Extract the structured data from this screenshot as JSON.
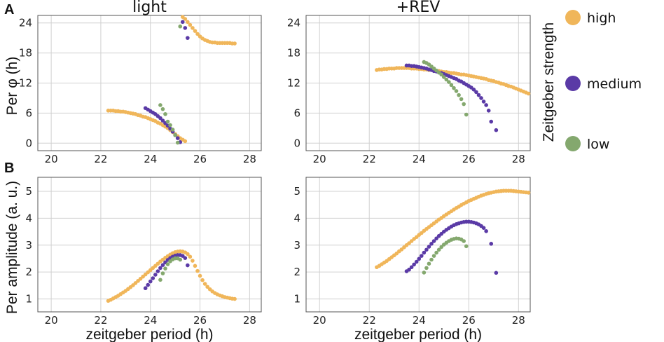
{
  "panel_labels": {
    "a": "A",
    "b": "B"
  },
  "chart_data": [
    {
      "type": "scatter",
      "id": "phase-light",
      "title": "light",
      "xlabel": "",
      "ylabel": "Per φ (h)",
      "xlim": [
        19.46,
        28.47
      ],
      "ylim": [
        -1.5,
        25.5
      ],
      "xticks": [
        20,
        22,
        24,
        26,
        28
      ],
      "yticks": [
        0,
        6,
        12,
        18,
        24
      ],
      "grid": true,
      "series": [
        {
          "name": "high",
          "x0": 22.3,
          "dx": 0.1,
          "y": [
            6.5,
            6.5,
            6.5,
            6.4,
            6.4,
            6.3,
            6.3,
            6.2,
            6.1,
            6.0,
            5.9,
            5.8,
            5.6,
            5.5,
            5.3,
            5.2,
            5.0,
            4.8,
            4.6,
            4.4,
            4.1,
            3.9,
            3.6,
            3.3,
            3.0,
            2.6,
            2.2,
            1.8,
            1.4,
            1.0,
            0.7,
            0.4
          ]
        },
        {
          "name": "high",
          "x0": 25.3,
          "dx": 0.1,
          "y": [
            25.2,
            24.8,
            24.2,
            23.6,
            23.0,
            22.4,
            21.8,
            21.3,
            20.9,
            20.6,
            20.4,
            20.2,
            20.1,
            20.1,
            20.0,
            20.0,
            20.0,
            20.0,
            20.0,
            20.0,
            19.9,
            19.9
          ]
        },
        {
          "name": "medium",
          "x0": 23.8,
          "dx": 0.1,
          "y": [
            7.0,
            6.7,
            6.4,
            6.1,
            5.8,
            5.4,
            5.0,
            4.5,
            4.0,
            3.5,
            2.9,
            2.3,
            1.6,
            1.0,
            0.2
          ]
        },
        {
          "name": "medium",
          "x0": 25.3,
          "dx": 0.1,
          "y": [
            24.2,
            23.0,
            21.0
          ]
        },
        {
          "name": "low",
          "x0": 24.4,
          "dx": 0.1,
          "y": [
            7.6,
            6.8,
            5.8,
            4.3,
            3.6,
            2.7,
            1.6,
            0.1
          ]
        },
        {
          "name": "low",
          "x0": 25.2,
          "dx": 0.1,
          "y": [
            23.3
          ]
        }
      ]
    },
    {
      "type": "scatter",
      "id": "phase-rev",
      "title": "+REV",
      "xlabel": "",
      "ylabel": "",
      "xlim": [
        19.46,
        28.47
      ],
      "ylim": [
        -1.5,
        25.5
      ],
      "xticks": [
        20,
        22,
        24,
        26,
        28
      ],
      "yticks": [
        0,
        6,
        12,
        18,
        24
      ],
      "grid": true,
      "series": [
        {
          "name": "high",
          "x0": 22.3,
          "dx": 0.1,
          "y": [
            14.6,
            14.7,
            14.7,
            14.8,
            14.8,
            14.9,
            14.9,
            14.9,
            15.0,
            15.0,
            15.0,
            15.0,
            15.0,
            15.0,
            14.9,
            14.9,
            14.9,
            14.8,
            14.8,
            14.7,
            14.7,
            14.6,
            14.6,
            14.5,
            14.4,
            14.4,
            14.3,
            14.2,
            14.2,
            14.1,
            14.0,
            14.0,
            13.9,
            13.8,
            13.7,
            13.7,
            13.6,
            13.5,
            13.4,
            13.3,
            13.2,
            13.1,
            13.0,
            12.9,
            12.8,
            12.6,
            12.5,
            12.4,
            12.2,
            12.1,
            11.9,
            11.8,
            11.6,
            11.4,
            11.3,
            11.1,
            10.9,
            10.7,
            10.5,
            10.3,
            10.1,
            9.9
          ]
        },
        {
          "name": "medium",
          "x0": 23.5,
          "dx": 0.1,
          "y": [
            15.5,
            15.5,
            15.4,
            15.4,
            15.3,
            15.2,
            15.1,
            15.0,
            14.9,
            14.7,
            14.6,
            14.4,
            14.3,
            14.1,
            14.0,
            13.8,
            13.6,
            13.4,
            13.2,
            13.0,
            12.8,
            12.5,
            12.3,
            12.0,
            11.7,
            11.4,
            11.1,
            10.7,
            10.2,
            9.6,
            9.0,
            8.3,
            7.6,
            6.5,
            4.3
          ]
        },
        {
          "name": "medium",
          "x0": 27.1,
          "dx": 0.1,
          "y": [
            2.6
          ]
        },
        {
          "name": "low",
          "x0": 24.2,
          "dx": 0.1,
          "y": [
            16.2,
            16.0,
            15.7,
            15.3,
            14.9,
            14.5,
            14.1,
            13.7,
            13.2,
            12.7,
            12.2,
            11.6,
            11.0,
            10.4,
            9.6,
            8.8,
            7.8,
            5.7
          ]
        }
      ]
    },
    {
      "type": "scatter",
      "id": "amp-light",
      "title": "",
      "xlabel": "zeitgeber period (h)",
      "ylabel": "Per amplitude (a. u.)",
      "xlim": [
        19.46,
        28.47
      ],
      "ylim": [
        0.52,
        5.52
      ],
      "xticks": [
        20,
        22,
        24,
        26,
        28
      ],
      "yticks": [
        1,
        2,
        3,
        4,
        5
      ],
      "grid": true,
      "series": [
        {
          "name": "high",
          "x0": 22.3,
          "dx": 0.1,
          "y": [
            0.93,
            0.97,
            1.02,
            1.07,
            1.12,
            1.18,
            1.24,
            1.3,
            1.37,
            1.44,
            1.51,
            1.59,
            1.67,
            1.75,
            1.83,
            1.91,
            1.99,
            2.07,
            2.15,
            2.23,
            2.31,
            2.39,
            2.46,
            2.53,
            2.59,
            2.65,
            2.7,
            2.74,
            2.76,
            2.77,
            2.76,
            2.73,
            2.67,
            2.57,
            2.42,
            2.23,
            2.04,
            1.86,
            1.7,
            1.56,
            1.45,
            1.36,
            1.28,
            1.22,
            1.17,
            1.13,
            1.1,
            1.07,
            1.05,
            1.03,
            1.01,
            1.0
          ]
        },
        {
          "name": "medium",
          "x0": 23.8,
          "dx": 0.1,
          "y": [
            1.4,
            1.52,
            1.65,
            1.77,
            1.9,
            2.03,
            2.15,
            2.26,
            2.36,
            2.45,
            2.52,
            2.57,
            2.61,
            2.63,
            2.63,
            2.6,
            2.52,
            2.25
          ]
        },
        {
          "name": "low",
          "x0": 24.4,
          "dx": 0.1,
          "y": [
            1.71,
            1.95,
            2.13,
            2.29,
            2.4,
            2.47,
            2.51,
            2.51,
            2.46
          ]
        }
      ]
    },
    {
      "type": "scatter",
      "id": "amp-rev",
      "title": "",
      "xlabel": "zeitgeber period (h)",
      "ylabel": "",
      "xlim": [
        19.46,
        28.47
      ],
      "ylim": [
        0.52,
        5.52
      ],
      "xticks": [
        20,
        22,
        24,
        26,
        28
      ],
      "yticks": [
        1,
        2,
        3,
        4,
        5
      ],
      "grid": true,
      "series": [
        {
          "name": "high",
          "x0": 22.3,
          "dx": 0.1,
          "y": [
            2.18,
            2.23,
            2.29,
            2.35,
            2.41,
            2.48,
            2.55,
            2.62,
            2.69,
            2.77,
            2.84,
            2.92,
            3.0,
            3.07,
            3.15,
            3.23,
            3.3,
            3.38,
            3.45,
            3.53,
            3.6,
            3.67,
            3.74,
            3.81,
            3.88,
            3.95,
            4.01,
            4.08,
            4.14,
            4.2,
            4.26,
            4.32,
            4.38,
            4.43,
            4.49,
            4.54,
            4.59,
            4.64,
            4.68,
            4.72,
            4.76,
            4.8,
            4.84,
            4.87,
            4.9,
            4.93,
            4.95,
            4.97,
            4.99,
            5.0,
            5.01,
            5.02,
            5.02,
            5.02,
            5.02,
            5.01,
            5.0,
            4.99,
            4.98,
            4.97,
            4.96,
            4.95
          ]
        },
        {
          "name": "medium",
          "x0": 23.5,
          "dx": 0.1,
          "y": [
            2.03,
            2.09,
            2.18,
            2.28,
            2.38,
            2.49,
            2.6,
            2.72,
            2.83,
            2.94,
            3.05,
            3.15,
            3.25,
            3.34,
            3.42,
            3.5,
            3.57,
            3.63,
            3.69,
            3.74,
            3.78,
            3.81,
            3.84,
            3.86,
            3.87,
            3.87,
            3.86,
            3.84,
            3.81,
            3.77,
            3.71,
            3.64,
            3.52
          ]
        },
        {
          "name": "medium",
          "x0": 26.9,
          "dx": 0.2,
          "y": [
            3.05,
            1.97
          ]
        },
        {
          "name": "low",
          "x0": 24.2,
          "dx": 0.1,
          "y": [
            1.98,
            2.15,
            2.31,
            2.46,
            2.6,
            2.72,
            2.83,
            2.93,
            3.02,
            3.09,
            3.15,
            3.2,
            3.23,
            3.25,
            3.24,
            3.21,
            3.15,
            2.96
          ]
        }
      ]
    }
  ],
  "legend": {
    "title": "Zeitgeber strength",
    "placement": "right",
    "items": [
      {
        "label": "high",
        "color": "#f0b65a"
      },
      {
        "label": "medium",
        "color": "#5a3aa6"
      },
      {
        "label": "low",
        "color": "#84a86e"
      }
    ]
  },
  "colors": {
    "high": "#f0b65a",
    "medium": "#5a3aa6",
    "low": "#84a86e"
  }
}
